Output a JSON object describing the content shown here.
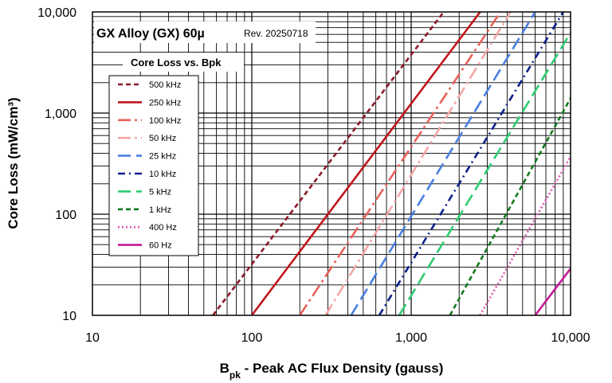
{
  "chart_data": {
    "type": "line",
    "title": "GX Alloy  (GX) 60µ",
    "revision": "Rev. 20250718",
    "legend_title": "Core Loss vs. Bpk",
    "legend_position": "top-left",
    "xlabel_main": "B",
    "xlabel_sub": "pk",
    "xlabel_rest": " - Peak AC Flux Density (gauss)",
    "ylabel": "Core Loss (mW/cm³)",
    "x_scale": "log",
    "y_scale": "log",
    "xlim": [
      10,
      10000
    ],
    "ylim": [
      10,
      10000
    ],
    "grid": true,
    "x_ticks": [
      {
        "value": 10,
        "label": "10"
      },
      {
        "value": 100,
        "label": "100"
      },
      {
        "value": 1000,
        "label": "1,000"
      },
      {
        "value": 10000,
        "label": "10,000"
      }
    ],
    "y_ticks": [
      {
        "value": 10,
        "label": "10"
      },
      {
        "value": 100,
        "label": "100"
      },
      {
        "value": 1000,
        "label": "1,000"
      },
      {
        "value": 10000,
        "label": "10,000"
      }
    ],
    "series": [
      {
        "name": "500 kHz",
        "color": "#8b1a2b",
        "style": "short-dash",
        "points": [
          [
            57,
            10
          ],
          [
            1600,
            10000
          ]
        ]
      },
      {
        "name": "250 kHz",
        "color": "#c0161c",
        "style": "solid",
        "points": [
          [
            100,
            10
          ],
          [
            2710,
            10000
          ]
        ]
      },
      {
        "name": "100 kHz",
        "color": "#e8625a",
        "style": "long-dash-dot",
        "points": [
          [
            200,
            10
          ],
          [
            3630,
            10000
          ]
        ]
      },
      {
        "name": "50 kHz",
        "color": "#f4a6a6",
        "style": "long-dash-dot",
        "points": [
          [
            290,
            10
          ],
          [
            4200,
            10000
          ]
        ]
      },
      {
        "name": "25 kHz",
        "color": "#4a7fe0",
        "style": "long-dash",
        "points": [
          [
            420,
            10
          ],
          [
            6000,
            10000
          ]
        ]
      },
      {
        "name": "10 kHz",
        "color": "#0b1f8a",
        "style": "dash-dot",
        "points": [
          [
            630,
            10
          ],
          [
            9000,
            10000
          ]
        ]
      },
      {
        "name": "5 kHz",
        "color": "#2ecc71",
        "style": "long-dash",
        "points": [
          [
            840,
            10
          ],
          [
            12000,
            10000
          ]
        ]
      },
      {
        "name": "1 kHz",
        "color": "#137a1e",
        "style": "short-dash",
        "points": [
          [
            1750,
            10
          ],
          [
            20000,
            10000
          ]
        ]
      },
      {
        "name": "400 Hz",
        "color": "#e055b0",
        "style": "dotted",
        "points": [
          [
            2700,
            10
          ],
          [
            33000,
            10000
          ]
        ]
      },
      {
        "name": "60 Hz",
        "color": "#c41a96",
        "style": "solid",
        "points": [
          [
            6000,
            10
          ],
          [
            10000,
            29
          ]
        ]
      }
    ]
  }
}
